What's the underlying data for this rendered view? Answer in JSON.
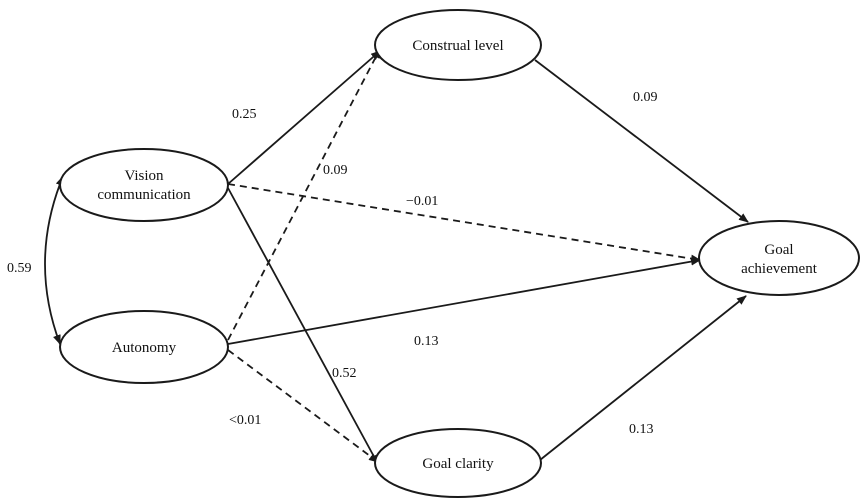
{
  "nodes": {
    "construal_level": "Construal level",
    "vision_communication_line1": "Vision",
    "vision_communication_line2": "communication",
    "autonomy": "Autonomy",
    "goal_achievement_line1": "Goal",
    "goal_achievement_line2": "achievement",
    "goal_clarity": "Goal clarity"
  },
  "paths": {
    "vision_to_construal": "0.25",
    "autonomy_to_construal": "0.09",
    "vision_to_goal_achievement": "−0.01",
    "construal_to_goal_achievement": "0.09",
    "autonomy_to_goal_achievement": "0.13",
    "vision_to_goal_clarity": "0.52",
    "autonomy_to_goal_clarity": "<0.01",
    "goal_clarity_to_goal_achievement": "0.13",
    "vision_autonomy_correlation": "0.59"
  },
  "legend_styles": {
    "significant_path": "solid",
    "nonsignificant_path": "dashed"
  },
  "colors": {
    "stroke": "#1a1a1a",
    "text": "#111111",
    "background": "#ffffff"
  }
}
